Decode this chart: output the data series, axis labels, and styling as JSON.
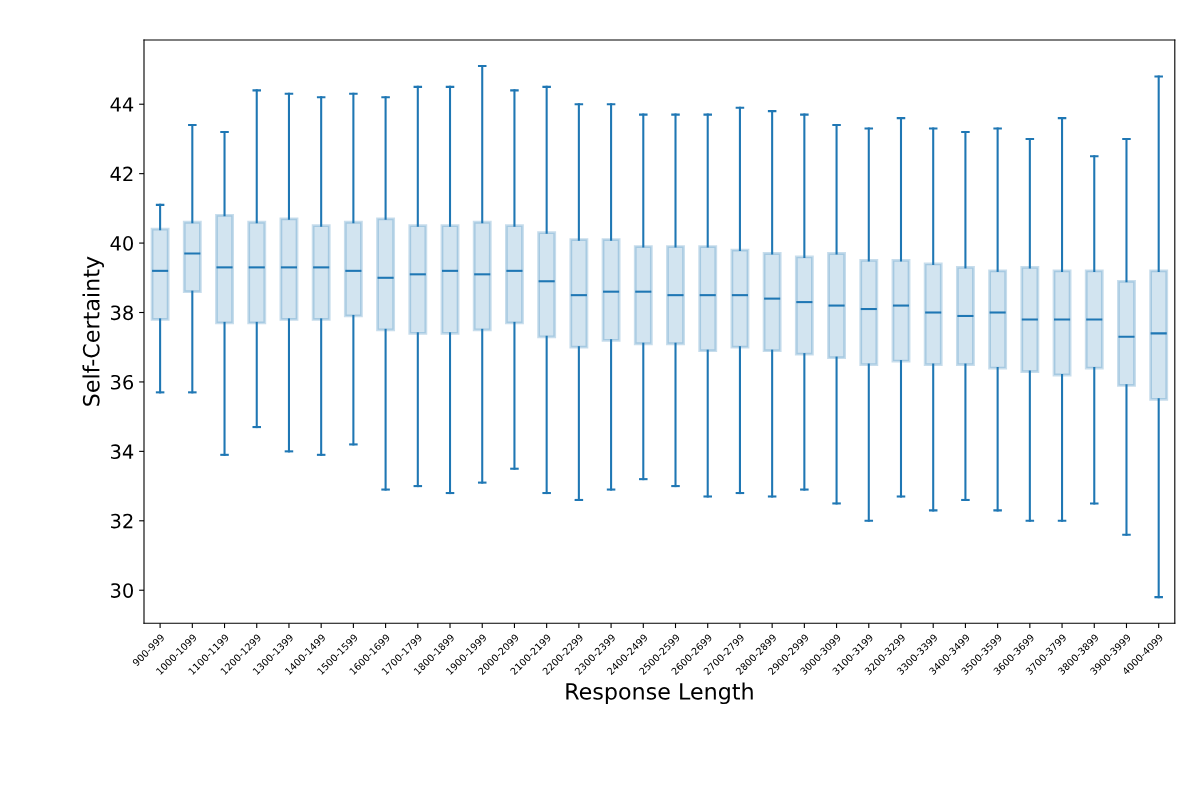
{
  "chart_data": {
    "type": "box",
    "xlabel": "Response Length",
    "ylabel": "Self-Certainty",
    "categories": [
      "900-999",
      "1000-1099",
      "1100-1199",
      "1200-1299",
      "1300-1399",
      "1400-1499",
      "1500-1599",
      "1600-1699",
      "1700-1799",
      "1800-1899",
      "1900-1999",
      "2000-2099",
      "2100-2199",
      "2200-2299",
      "2300-2399",
      "2400-2499",
      "2500-2599",
      "2600-2699",
      "2700-2799",
      "2800-2899",
      "2900-2999",
      "3000-3099",
      "3100-3199",
      "3200-3299",
      "3300-3399",
      "3400-3499",
      "3500-3599",
      "3600-3699",
      "3700-3799",
      "3800-3899",
      "3900-3999",
      "4000-4099"
    ],
    "color": "#1f77b4",
    "boxes": [
      {
        "low": 35.7,
        "q1": 37.8,
        "median": 39.2,
        "q3": 40.4,
        "high": 41.1
      },
      {
        "low": 35.7,
        "q1": 38.6,
        "median": 39.7,
        "q3": 40.6,
        "high": 43.4
      },
      {
        "low": 33.9,
        "q1": 37.7,
        "median": 39.3,
        "q3": 40.8,
        "high": 43.2
      },
      {
        "low": 34.7,
        "q1": 37.7,
        "median": 39.3,
        "q3": 40.6,
        "high": 44.4
      },
      {
        "low": 34.0,
        "q1": 37.8,
        "median": 39.3,
        "q3": 40.7,
        "high": 44.3
      },
      {
        "low": 33.9,
        "q1": 37.8,
        "median": 39.3,
        "q3": 40.5,
        "high": 44.2
      },
      {
        "low": 34.2,
        "q1": 37.9,
        "median": 39.2,
        "q3": 40.6,
        "high": 44.3
      },
      {
        "low": 32.9,
        "q1": 37.5,
        "median": 39.0,
        "q3": 40.7,
        "high": 44.2
      },
      {
        "low": 33.0,
        "q1": 37.4,
        "median": 39.1,
        "q3": 40.5,
        "high": 44.5
      },
      {
        "low": 32.8,
        "q1": 37.4,
        "median": 39.2,
        "q3": 40.5,
        "high": 44.5
      },
      {
        "low": 33.1,
        "q1": 37.5,
        "median": 39.1,
        "q3": 40.6,
        "high": 45.1
      },
      {
        "low": 33.5,
        "q1": 37.7,
        "median": 39.2,
        "q3": 40.5,
        "high": 44.4
      },
      {
        "low": 32.8,
        "q1": 37.3,
        "median": 38.9,
        "q3": 40.3,
        "high": 44.5
      },
      {
        "low": 32.6,
        "q1": 37.0,
        "median": 38.5,
        "q3": 40.1,
        "high": 44.0
      },
      {
        "low": 32.9,
        "q1": 37.2,
        "median": 38.6,
        "q3": 40.1,
        "high": 44.0
      },
      {
        "low": 33.2,
        "q1": 37.1,
        "median": 38.6,
        "q3": 39.9,
        "high": 43.7
      },
      {
        "low": 33.0,
        "q1": 37.1,
        "median": 38.5,
        "q3": 39.9,
        "high": 43.7
      },
      {
        "low": 32.7,
        "q1": 36.9,
        "median": 38.5,
        "q3": 39.9,
        "high": 43.7
      },
      {
        "low": 32.8,
        "q1": 37.0,
        "median": 38.5,
        "q3": 39.8,
        "high": 43.9
      },
      {
        "low": 32.7,
        "q1": 36.9,
        "median": 38.4,
        "q3": 39.7,
        "high": 43.8
      },
      {
        "low": 32.9,
        "q1": 36.8,
        "median": 38.3,
        "q3": 39.6,
        "high": 43.7
      },
      {
        "low": 32.5,
        "q1": 36.7,
        "median": 38.2,
        "q3": 39.7,
        "high": 43.4
      },
      {
        "low": 32.0,
        "q1": 36.5,
        "median": 38.1,
        "q3": 39.5,
        "high": 43.3
      },
      {
        "low": 32.7,
        "q1": 36.6,
        "median": 38.2,
        "q3": 39.5,
        "high": 43.6
      },
      {
        "low": 32.3,
        "q1": 36.5,
        "median": 38.0,
        "q3": 39.4,
        "high": 43.3
      },
      {
        "low": 32.6,
        "q1": 36.5,
        "median": 37.9,
        "q3": 39.3,
        "high": 43.2
      },
      {
        "low": 32.3,
        "q1": 36.4,
        "median": 38.0,
        "q3": 39.2,
        "high": 43.3
      },
      {
        "low": 32.0,
        "q1": 36.3,
        "median": 37.8,
        "q3": 39.3,
        "high": 43.0
      },
      {
        "low": 32.0,
        "q1": 36.2,
        "median": 37.8,
        "q3": 39.2,
        "high": 43.6
      },
      {
        "low": 32.5,
        "q1": 36.4,
        "median": 37.8,
        "q3": 39.2,
        "high": 42.5
      },
      {
        "low": 31.6,
        "q1": 35.9,
        "median": 37.3,
        "q3": 38.9,
        "high": 43.0
      },
      {
        "low": 29.8,
        "q1": 35.5,
        "median": 37.4,
        "q3": 39.2,
        "high": 44.8
      }
    ],
    "ylim": [
      29.05,
      45.85
    ],
    "yticks": [
      30,
      32,
      34,
      36,
      38,
      40,
      42,
      44
    ],
    "grid": false
  }
}
